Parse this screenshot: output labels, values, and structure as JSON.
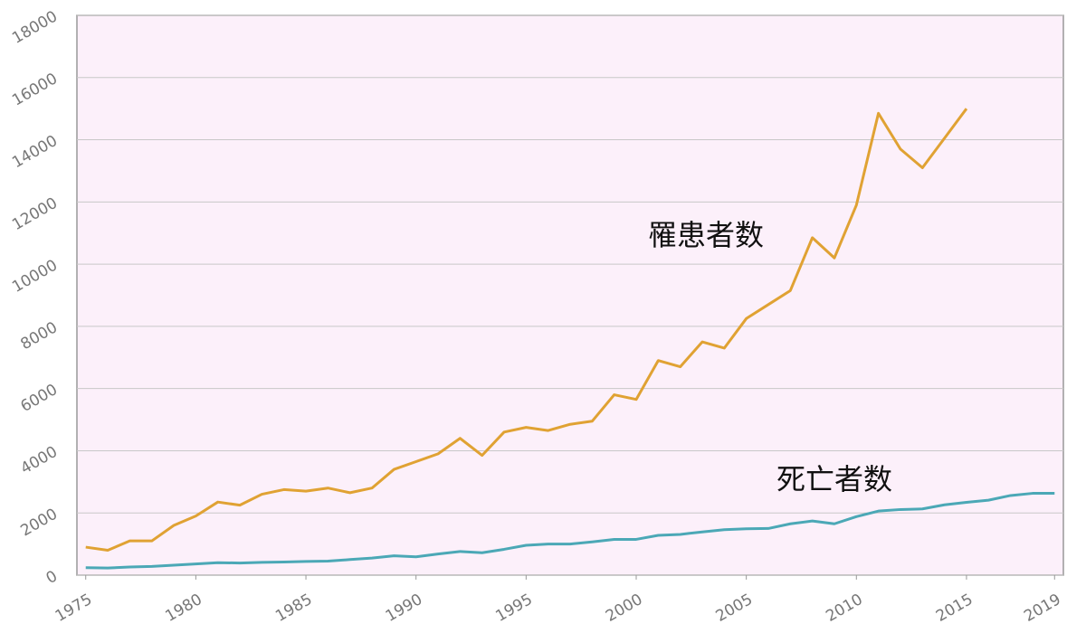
{
  "chart_data": {
    "type": "line",
    "x": [
      1975,
      1976,
      1977,
      1978,
      1979,
      1980,
      1981,
      1982,
      1983,
      1984,
      1985,
      1986,
      1987,
      1988,
      1989,
      1990,
      1991,
      1992,
      1993,
      1994,
      1995,
      1996,
      1997,
      1998,
      1999,
      2000,
      2001,
      2002,
      2003,
      2004,
      2005,
      2006,
      2007,
      2008,
      2009,
      2010,
      2011,
      2012,
      2013,
      2014,
      2015,
      2016,
      2017,
      2018,
      2019
    ],
    "series": [
      {
        "name": "罹患者数",
        "color": "#e0a233",
        "values": [
          900,
          800,
          1100,
          1100,
          1600,
          1900,
          2350,
          2250,
          2600,
          2750,
          2700,
          2800,
          2650,
          2800,
          3400,
          3650,
          3900,
          4400,
          3850,
          4600,
          4750,
          4650,
          4850,
          4950,
          5800,
          5650,
          6900,
          6700,
          7500,
          7300,
          8250,
          8700,
          9150,
          10850,
          10200,
          11900,
          14850,
          13700,
          13100,
          14050,
          15000,
          null,
          null,
          null,
          null
        ]
      },
      {
        "name": "死亡者数",
        "color": "#4ba8b6",
        "values": [
          240,
          230,
          260,
          280,
          320,
          360,
          400,
          390,
          410,
          420,
          440,
          450,
          500,
          550,
          620,
          590,
          680,
          760,
          720,
          830,
          960,
          1000,
          1000,
          1070,
          1150,
          1150,
          1280,
          1310,
          1390,
          1460,
          1490,
          1500,
          1650,
          1740,
          1650,
          1880,
          2060,
          2110,
          2130,
          2260,
          2340,
          2410,
          2560,
          2630,
          2630
        ]
      }
    ],
    "xlim": [
      1974.6,
      2019.4
    ],
    "xticks": [
      1975,
      1980,
      1985,
      1990,
      1995,
      2000,
      2005,
      2010,
      2015,
      2019
    ],
    "ylim": [
      0,
      18000
    ],
    "yticks": [
      0,
      2000,
      4000,
      6000,
      8000,
      10000,
      12000,
      14000,
      16000,
      18000
    ],
    "grid": true
  }
}
